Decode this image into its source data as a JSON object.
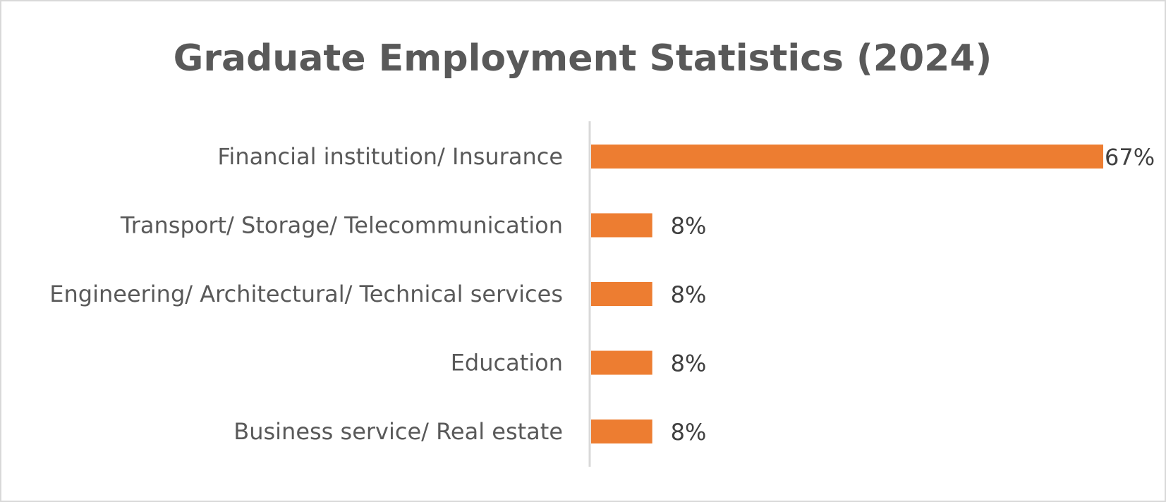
{
  "chart_data": {
    "type": "bar",
    "orientation": "horizontal",
    "title": "Graduate Employment Statistics (2024)",
    "categories": [
      "Financial institution/ Insurance",
      "Transport/ Storage/ Telecommunication",
      "Engineering/ Architectural/ Technical services",
      "Education",
      "Business service/ Real estate"
    ],
    "values": [
      67,
      8,
      8,
      8,
      8
    ],
    "data_labels": [
      "67%",
      "8%",
      "8%",
      "8%",
      "8%"
    ],
    "unit": "%",
    "xlim": [
      0,
      67
    ],
    "grid": false,
    "legend": "none",
    "bar_color": "#ED7D31",
    "axis_color": "#d9d9d9",
    "text_color": "#595959"
  }
}
